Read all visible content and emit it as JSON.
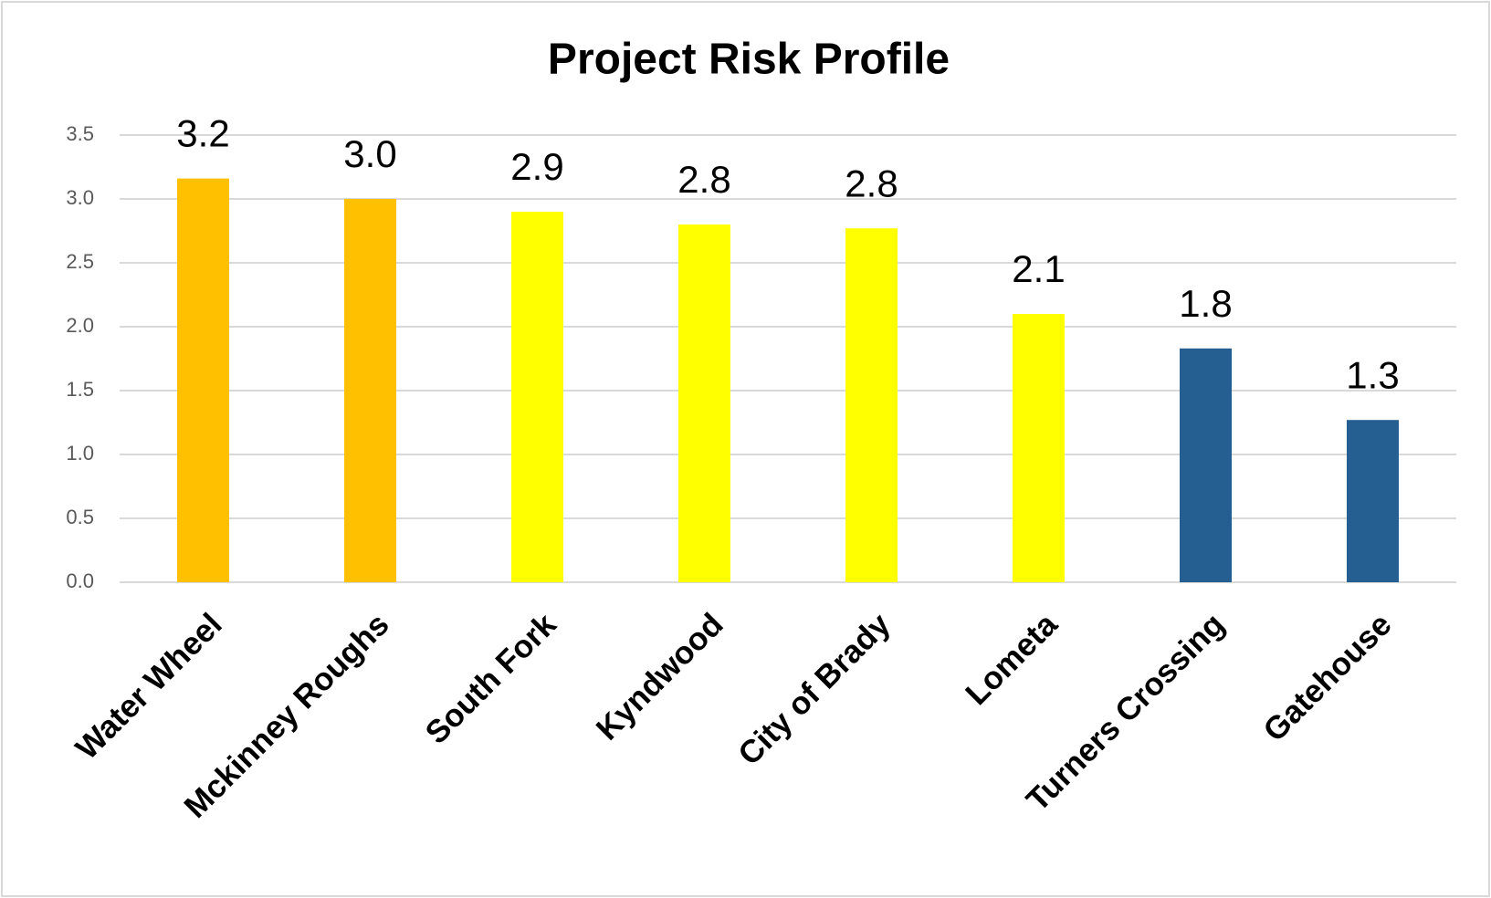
{
  "chart_data": {
    "type": "bar",
    "title": "Project Risk Profile",
    "categories": [
      "Water Wheel",
      "Mckinney Roughs",
      "South Fork",
      "Kyndwood",
      "City of Brady",
      "Lometa",
      "Turners Crossing",
      "Gatehouse"
    ],
    "values": [
      3.16,
      3.0,
      2.9,
      2.8,
      2.77,
      2.1,
      1.83,
      1.27
    ],
    "value_labels": [
      "3.2",
      "3.0",
      "2.9",
      "2.8",
      "2.8",
      "2.1",
      "1.8",
      "1.3"
    ],
    "colors": [
      "#FFC000",
      "#FFC000",
      "#FFFF00",
      "#FFFF00",
      "#FFFF00",
      "#FFFF00",
      "#255E91",
      "#255E91"
    ],
    "ylim": [
      0,
      3.5
    ],
    "yticks": [
      {
        "value": 0,
        "label": "0.0"
      },
      0.5,
      {
        "value": 1,
        "label": "1.0"
      },
      1.5,
      {
        "value": 2,
        "label": "2.0"
      },
      2.5,
      {
        "value": 3,
        "label": "3.0"
      },
      3.5
    ],
    "grid": true
  }
}
